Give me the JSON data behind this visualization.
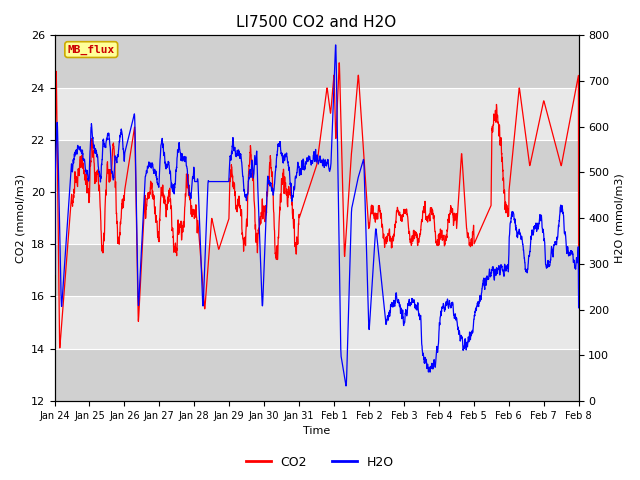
{
  "title": "LI7500 CO2 and H2O",
  "xlabel": "Time",
  "ylabel_left": "CO2 (mmol/m3)",
  "ylabel_right": "H2O (mmol/m3)",
  "ylim_left": [
    12,
    26
  ],
  "ylim_right": [
    0,
    800
  ],
  "yticks_left": [
    12,
    14,
    16,
    18,
    20,
    22,
    24,
    26
  ],
  "yticks_right": [
    0,
    100,
    200,
    300,
    400,
    500,
    600,
    700,
    800
  ],
  "xticklabels": [
    "Jan 24",
    "Jan 25",
    "Jan 26",
    "Jan 27",
    "Jan 28",
    "Jan 29",
    "Jan 30",
    "Jan 31",
    "Feb 1",
    "Feb 2",
    "Feb 3",
    "Feb 4",
    "Feb 5",
    "Feb 6",
    "Feb 7",
    "Feb 8"
  ],
  "legend_labels": [
    "CO2",
    "H2O"
  ],
  "co2_color": "#FF0000",
  "h2o_color": "#0000FF",
  "watermark_text": "MB_flux",
  "watermark_bg": "#FFFF99",
  "watermark_border": "#CCAA00",
  "bg_color": "#FFFFFF",
  "plot_bg_light": "#E8E8E8",
  "plot_bg_dark": "#D0D0D0",
  "grid_color": "#FFFFFF",
  "title_fontsize": 11,
  "label_fontsize": 8,
  "tick_fontsize": 8
}
